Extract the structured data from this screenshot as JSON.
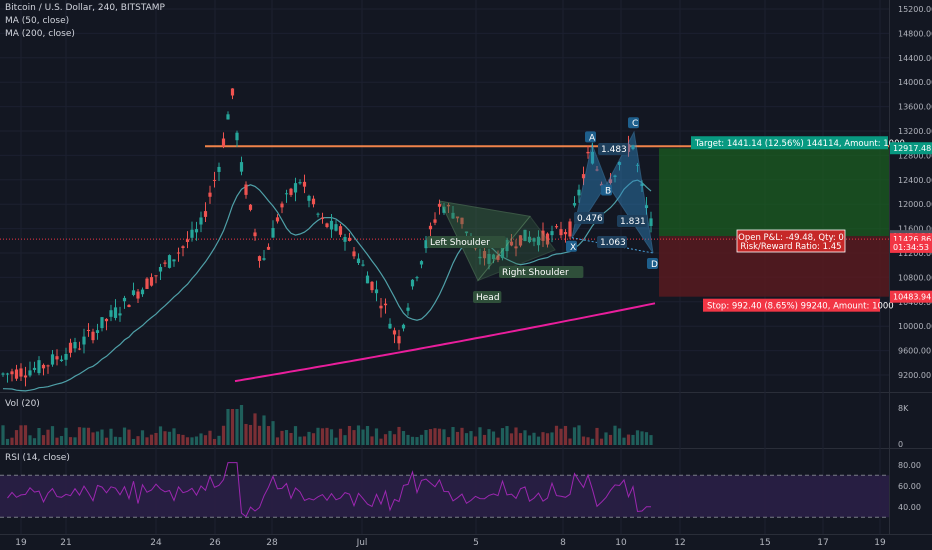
{
  "header": {
    "symbol": "Bitcoin / U.S. Dollar, 240, BITSTAMP",
    "ma1": "MA (50, close)",
    "ma2": "MA (200, close)"
  },
  "volume_pane": {
    "label": "Vol (20)",
    "ticks": [
      "8K",
      "0"
    ]
  },
  "rsi_pane": {
    "label": "RSI (14, close)",
    "ticks": [
      "80.00",
      "60.00",
      "40.00"
    ]
  },
  "x_axis": {
    "labels": [
      "19",
      "21",
      "24",
      "26",
      "28",
      "Jul",
      "5",
      "8",
      "10",
      "12",
      "15",
      "17",
      "19"
    ]
  },
  "price_axis": {
    "ticks": [
      "15200.00",
      "14800.00",
      "14400.00",
      "14000.00",
      "13600.00",
      "13200.00",
      "12800.00",
      "12400.00",
      "12000.00",
      "11600.00",
      "11200.00",
      "10800.00",
      "10400.00",
      "10000.00",
      "9600.00",
      "9200.00"
    ],
    "tags": [
      {
        "text": "12917.48",
        "price": 12917.48,
        "color": "#089981"
      },
      {
        "text": "11476.34",
        "price": 11476.34,
        "color": "#4c525e"
      },
      {
        "text": "11426.86",
        "price": 11426.86,
        "color": "#f23645"
      },
      {
        "text": "01:34:53",
        "price": 11300,
        "color": "#f23645"
      },
      {
        "text": "10483.94",
        "price": 10483.94,
        "color": "#f23645"
      }
    ]
  },
  "annotations": {
    "target": "Target: 1441.14 (12.56%) 144114, Amount: 1000",
    "stop": "Stop: 992.40 (8.65%) 99240, Amount: 1000",
    "pnl_line1": "Open P&L: -49.48, Qty: 0",
    "pnl_line2": "Risk/Reward Ratio: 1.45",
    "left_shoulder": "Left Shoulder",
    "head": "Head",
    "right_shoulder": "Right Shoulder",
    "harmonic": {
      "X": "X",
      "A": "A",
      "B": "B",
      "C": "C",
      "D": "D",
      "r1": "1.483",
      "r2": "0.476",
      "r3": "1.831",
      "r4": "1.063"
    }
  },
  "colors": {
    "up": "#26a69a",
    "down": "#ef5350",
    "ma50": "#4fa0a8",
    "ma200": "#e91e9c",
    "resistance": "#f0834a",
    "target_zone": "#1b5e20",
    "stop_zone": "#5d1a1f",
    "harmonic": "#2e86c1",
    "hs": "#3b6e47"
  },
  "chart_data": {
    "type": "candlestick",
    "price_range": [
      9000,
      15300
    ],
    "resistance_level": 12950,
    "entry_price": 11476.34,
    "target_price": 12917.48,
    "stop_price": 10483.94,
    "last_price": 11426.86,
    "rsi_bands": [
      70,
      30
    ]
  }
}
